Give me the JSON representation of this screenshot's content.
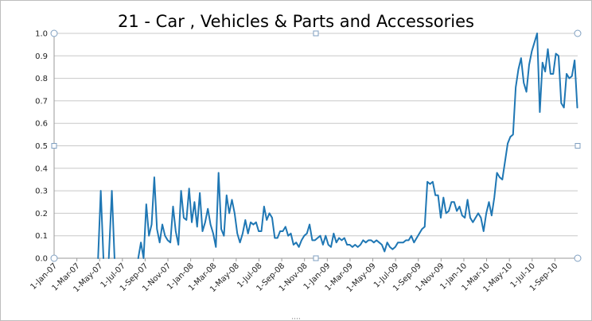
{
  "chart_data": {
    "type": "line",
    "title": "21 - Car , Vehicles & Parts and Accessories",
    "xlabel": "",
    "ylabel": "",
    "ylim": [
      0,
      1.0
    ],
    "grid": true,
    "legend": "none",
    "line_color": "#1f77b4",
    "grid_color": "#c8c8c8",
    "x_tick_labels": [
      "1-Jan-07",
      "1-Mar-07",
      "1-May-07",
      "1-Jul-07",
      "1-Sep-07",
      "1-Nov-07",
      "1-Jan-08",
      "1-Mar-08",
      "1-May-08",
      "1-Jul-08",
      "1-Sep-08",
      "1-Nov-08",
      "1-Jan-09",
      "1-Mar-09",
      "1-May-09",
      "1-Jul-09",
      "1-Sep-09",
      "1-Nov-09",
      "1-Jan-10",
      "1-Mar-10",
      "1-May-10",
      "1-Jul-10",
      "1-Sep-10"
    ],
    "y_tick_labels": [
      "0.0",
      "0.1",
      "0.2",
      "0.3",
      "0.4",
      "0.5",
      "0.6",
      "0.7",
      "0.8",
      "0.9",
      "1.0"
    ],
    "x_range": [
      "2007-01-01",
      "2010-10-01"
    ],
    "series": [
      {
        "segments": [
          [
            [
              "2007-04-26",
              0.0
            ],
            [
              "2007-05-03",
              0.3
            ],
            [
              "2007-05-10",
              0.0
            ]
          ],
          [
            [
              "2007-05-24",
              0.0
            ],
            [
              "2007-06-01",
              0.3
            ],
            [
              "2007-06-08",
              0.0
            ]
          ],
          [
            [
              "2007-08-09",
              0.0
            ],
            [
              "2007-08-16",
              0.07
            ],
            [
              "2007-08-23",
              0.0
            ],
            [
              "2007-08-30",
              0.24
            ],
            [
              "2007-09-06",
              0.1
            ],
            [
              "2007-09-13",
              0.15
            ],
            [
              "2007-09-20",
              0.36
            ],
            [
              "2007-09-27",
              0.13
            ],
            [
              "2007-10-04",
              0.07
            ],
            [
              "2007-10-11",
              0.15
            ],
            [
              "2007-10-18",
              0.1
            ],
            [
              "2007-10-25",
              0.08
            ],
            [
              "2007-11-01",
              0.07
            ],
            [
              "2007-11-08",
              0.23
            ],
            [
              "2007-11-15",
              0.12
            ],
            [
              "2007-11-22",
              0.06
            ],
            [
              "2007-11-29",
              0.3
            ],
            [
              "2007-12-06",
              0.18
            ],
            [
              "2007-12-13",
              0.17
            ],
            [
              "2007-12-20",
              0.31
            ],
            [
              "2007-12-27",
              0.16
            ],
            [
              "2008-01-03",
              0.25
            ],
            [
              "2008-01-10",
              0.14
            ],
            [
              "2008-01-17",
              0.29
            ],
            [
              "2008-01-24",
              0.12
            ],
            [
              "2008-01-31",
              0.16
            ],
            [
              "2008-02-07",
              0.22
            ],
            [
              "2008-02-14",
              0.15
            ],
            [
              "2008-02-21",
              0.11
            ],
            [
              "2008-02-28",
              0.05
            ],
            [
              "2008-03-06",
              0.38
            ],
            [
              "2008-03-13",
              0.13
            ],
            [
              "2008-03-20",
              0.1
            ],
            [
              "2008-03-27",
              0.28
            ],
            [
              "2008-04-03",
              0.2
            ],
            [
              "2008-04-10",
              0.26
            ],
            [
              "2008-04-17",
              0.2
            ],
            [
              "2008-04-24",
              0.11
            ],
            [
              "2008-05-01",
              0.07
            ],
            [
              "2008-05-08",
              0.11
            ],
            [
              "2008-05-15",
              0.17
            ],
            [
              "2008-05-22",
              0.11
            ],
            [
              "2008-05-29",
              0.16
            ],
            [
              "2008-06-05",
              0.15
            ],
            [
              "2008-06-12",
              0.16
            ],
            [
              "2008-06-19",
              0.12
            ],
            [
              "2008-06-26",
              0.12
            ],
            [
              "2008-07-03",
              0.23
            ],
            [
              "2008-07-10",
              0.17
            ],
            [
              "2008-07-17",
              0.2
            ],
            [
              "2008-07-24",
              0.18
            ],
            [
              "2008-07-31",
              0.09
            ],
            [
              "2008-08-07",
              0.09
            ],
            [
              "2008-08-14",
              0.12
            ],
            [
              "2008-08-21",
              0.12
            ],
            [
              "2008-08-28",
              0.14
            ],
            [
              "2008-09-04",
              0.1
            ],
            [
              "2008-09-11",
              0.11
            ],
            [
              "2008-09-18",
              0.06
            ],
            [
              "2008-09-25",
              0.07
            ],
            [
              "2008-10-02",
              0.05
            ],
            [
              "2008-10-09",
              0.08
            ],
            [
              "2008-10-16",
              0.1
            ],
            [
              "2008-10-23",
              0.11
            ],
            [
              "2008-10-30",
              0.15
            ],
            [
              "2008-11-06",
              0.08
            ],
            [
              "2008-11-13",
              0.08
            ],
            [
              "2008-11-20",
              0.09
            ],
            [
              "2008-11-27",
              0.1
            ],
            [
              "2008-12-04",
              0.06
            ],
            [
              "2008-12-11",
              0.1
            ],
            [
              "2008-12-18",
              0.06
            ],
            [
              "2008-12-25",
              0.05
            ],
            [
              "2009-01-01",
              0.11
            ],
            [
              "2009-01-08",
              0.07
            ],
            [
              "2009-01-15",
              0.09
            ],
            [
              "2009-01-22",
              0.08
            ],
            [
              "2009-01-29",
              0.09
            ],
            [
              "2009-02-05",
              0.06
            ],
            [
              "2009-02-12",
              0.06
            ],
            [
              "2009-02-19",
              0.05
            ],
            [
              "2009-02-26",
              0.06
            ],
            [
              "2009-03-05",
              0.05
            ],
            [
              "2009-03-12",
              0.06
            ],
            [
              "2009-03-19",
              0.08
            ],
            [
              "2009-03-26",
              0.07
            ],
            [
              "2009-04-02",
              0.08
            ],
            [
              "2009-04-09",
              0.08
            ],
            [
              "2009-04-16",
              0.07
            ],
            [
              "2009-04-23",
              0.08
            ],
            [
              "2009-04-30",
              0.07
            ],
            [
              "2009-05-07",
              0.06
            ],
            [
              "2009-05-14",
              0.03
            ],
            [
              "2009-05-21",
              0.07
            ],
            [
              "2009-05-28",
              0.05
            ],
            [
              "2009-06-04",
              0.04
            ],
            [
              "2009-06-11",
              0.05
            ],
            [
              "2009-06-18",
              0.07
            ],
            [
              "2009-06-25",
              0.07
            ],
            [
              "2009-07-02",
              0.07
            ],
            [
              "2009-07-09",
              0.08
            ],
            [
              "2009-07-16",
              0.08
            ],
            [
              "2009-07-23",
              0.1
            ],
            [
              "2009-07-30",
              0.07
            ],
            [
              "2009-08-06",
              0.09
            ],
            [
              "2009-08-13",
              0.11
            ],
            [
              "2009-08-20",
              0.13
            ],
            [
              "2009-08-27",
              0.14
            ],
            [
              "2009-09-03",
              0.34
            ],
            [
              "2009-09-10",
              0.33
            ],
            [
              "2009-09-17",
              0.34
            ],
            [
              "2009-09-24",
              0.28
            ],
            [
              "2009-10-01",
              0.28
            ],
            [
              "2009-10-08",
              0.18
            ],
            [
              "2009-10-15",
              0.27
            ],
            [
              "2009-10-22",
              0.2
            ],
            [
              "2009-10-29",
              0.21
            ],
            [
              "2009-11-05",
              0.25
            ],
            [
              "2009-11-12",
              0.25
            ],
            [
              "2009-11-19",
              0.21
            ],
            [
              "2009-11-26",
              0.23
            ],
            [
              "2009-12-03",
              0.19
            ],
            [
              "2009-12-10",
              0.18
            ],
            [
              "2009-12-17",
              0.26
            ],
            [
              "2009-12-24",
              0.18
            ],
            [
              "2009-12-31",
              0.16
            ],
            [
              "2010-01-07",
              0.18
            ],
            [
              "2010-01-14",
              0.2
            ],
            [
              "2010-01-21",
              0.18
            ],
            [
              "2010-01-28",
              0.12
            ],
            [
              "2010-02-04",
              0.2
            ],
            [
              "2010-02-11",
              0.25
            ],
            [
              "2010-02-18",
              0.19
            ],
            [
              "2010-02-25",
              0.27
            ],
            [
              "2010-03-04",
              0.38
            ],
            [
              "2010-03-11",
              0.36
            ],
            [
              "2010-03-18",
              0.35
            ],
            [
              "2010-03-25",
              0.43
            ],
            [
              "2010-04-01",
              0.51
            ],
            [
              "2010-04-08",
              0.54
            ],
            [
              "2010-04-15",
              0.55
            ],
            [
              "2010-04-22",
              0.76
            ],
            [
              "2010-04-29",
              0.84
            ],
            [
              "2010-05-06",
              0.89
            ],
            [
              "2010-05-13",
              0.78
            ],
            [
              "2010-05-20",
              0.74
            ],
            [
              "2010-05-27",
              0.86
            ],
            [
              "2010-06-03",
              0.92
            ],
            [
              "2010-06-10",
              0.96
            ],
            [
              "2010-06-17",
              1.0
            ],
            [
              "2010-06-24",
              0.65
            ],
            [
              "2010-07-01",
              0.87
            ],
            [
              "2010-07-08",
              0.83
            ],
            [
              "2010-07-15",
              0.93
            ],
            [
              "2010-07-22",
              0.82
            ],
            [
              "2010-07-29",
              0.82
            ],
            [
              "2010-08-05",
              0.91
            ],
            [
              "2010-08-12",
              0.9
            ],
            [
              "2010-08-19",
              0.69
            ],
            [
              "2010-08-26",
              0.67
            ],
            [
              "2010-09-02",
              0.82
            ],
            [
              "2010-09-09",
              0.8
            ],
            [
              "2010-09-16",
              0.81
            ],
            [
              "2010-09-23",
              0.88
            ],
            [
              "2010-09-30",
              0.67
            ]
          ]
        ]
      }
    ]
  }
}
